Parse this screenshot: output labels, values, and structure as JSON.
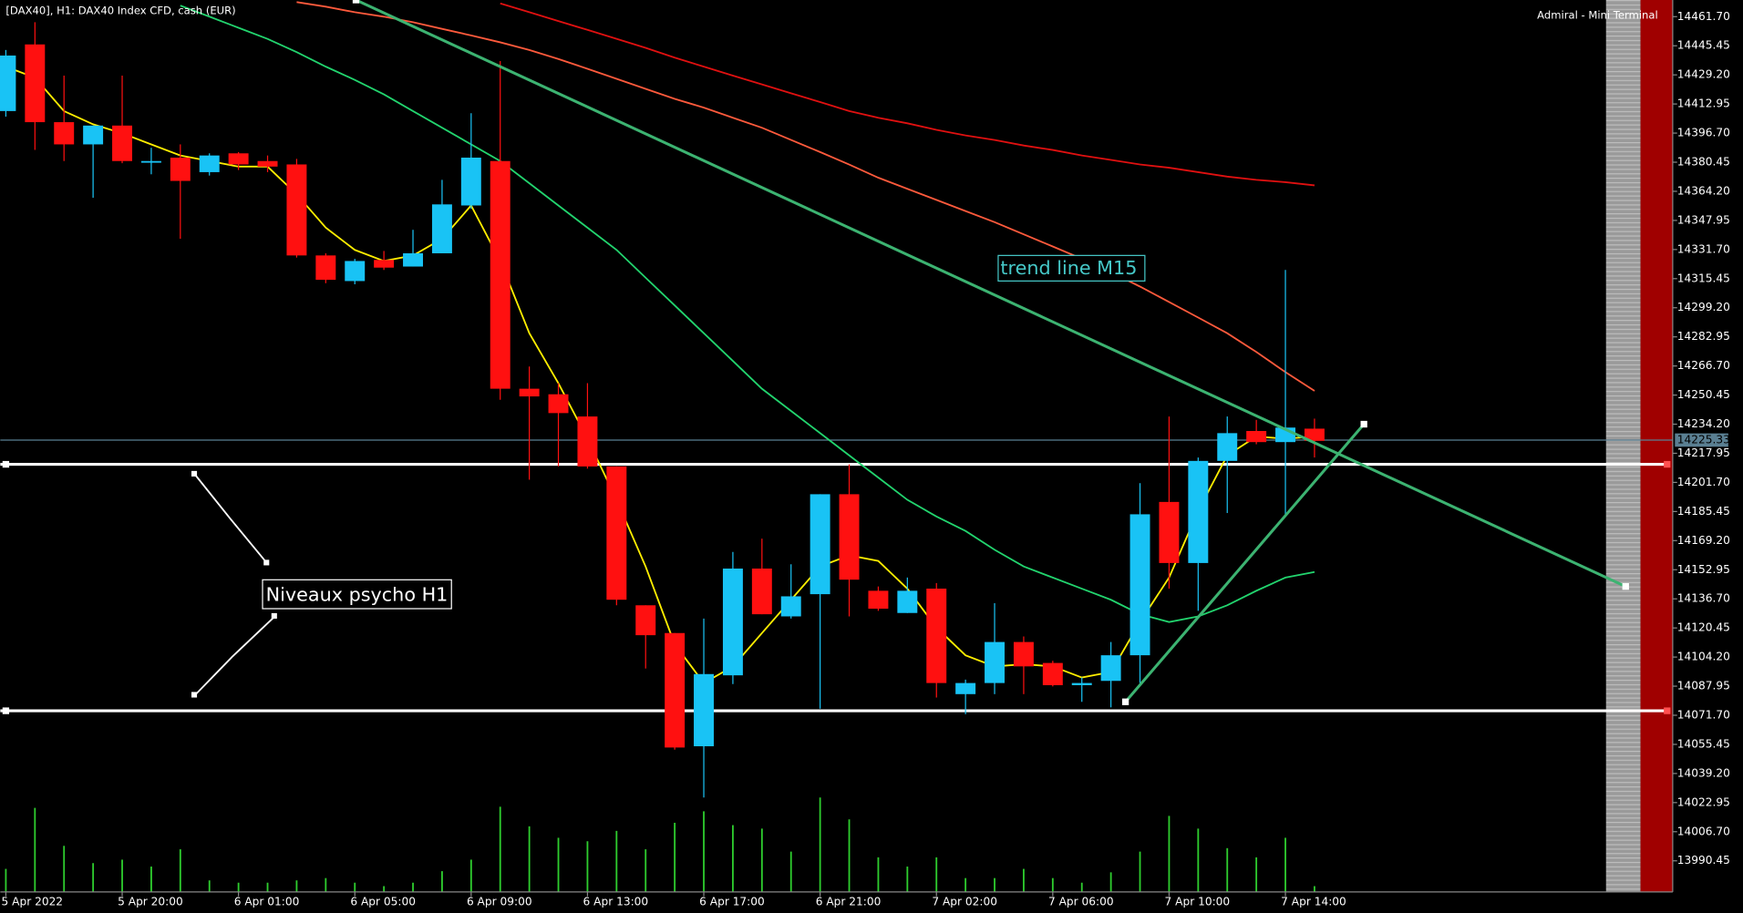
{
  "chart_data": {
    "type": "candlestick",
    "title": "[DAX40], H1:  DAX40 Index CFD, cash (EUR)",
    "terminal_label": "Admiral - Mini Terminal",
    "annotations": [
      "trend line M15",
      "Niveaux psycho H1"
    ],
    "categories": [
      "5 Apr 2022",
      null,
      null,
      null,
      "5 Apr 20:00",
      null,
      null,
      null,
      "6 Apr 01:00",
      null,
      null,
      null,
      "6 Apr 05:00",
      null,
      null,
      null,
      "6 Apr 09:00",
      null,
      null,
      null,
      "6 Apr 13:00",
      null,
      null,
      null,
      "6 Apr 17:00",
      null,
      null,
      null,
      "6 Apr 21:00",
      null,
      null,
      null,
      "7 Apr 02:00",
      null,
      null,
      null,
      "7 Apr 06:00",
      null,
      null,
      null,
      "7 Apr 10:00",
      null,
      null,
      null,
      "7 Apr 14:00",
      null
    ],
    "open": [
      14409.0,
      14446.2,
      14402.8,
      14390.4,
      14400.9,
      14380.5,
      14383.0,
      14374.9,
      14385.4,
      14381.1,
      14379.2,
      14328.4,
      14314.1,
      14325.9,
      14322.2,
      14329.6,
      14356.3,
      14381.1,
      14254.0,
      14250.9,
      14238.5,
      14210.6,
      14133.1,
      14117.6,
      14054.4,
      14094.0,
      14153.6,
      14126.9,
      14139.3,
      14195.1,
      14141.2,
      14128.8,
      14142.4,
      14083.5,
      14089.7,
      14112.6,
      14100.9,
      14088.5,
      14090.9,
      14105.2,
      14190.8,
      14156.7,
      14213.7,
      14230.4,
      14224.2,
      14231.7
    ],
    "high": [
      14443.1,
      14458.6,
      14428.8,
      14400.9,
      14428.8,
      14388.5,
      14390.4,
      14385.4,
      14386.1,
      14384.2,
      14382.3,
      14329.6,
      14326.5,
      14330.9,
      14342.7,
      14370.6,
      14407.8,
      14436.9,
      14266.4,
      14257.1,
      14257.1,
      14210.6,
      14133.1,
      14117.6,
      14125.7,
      14162.9,
      14170.3,
      14156.0,
      14195.1,
      14211.8,
      14143.6,
      14148.6,
      14145.5,
      14091.6,
      14134.3,
      14115.7,
      14102.1,
      14092.8,
      14112.6,
      14201.3,
      14238.5,
      14215.6,
      14238.5,
      14236.6,
      14320.3,
      14237.3
    ],
    "low": [
      14405.9,
      14387.3,
      14381.1,
      14360.6,
      14379.9,
      14373.7,
      14337.7,
      14373.0,
      14376.1,
      14374.9,
      14327.2,
      14312.9,
      14312.3,
      14320.3,
      14322.2,
      14329.6,
      14354.4,
      14247.8,
      14203.2,
      14210.6,
      14209.4,
      14133.1,
      14097.8,
      14052.5,
      14025.8,
      14089.1,
      14128.1,
      14125.7,
      14075.4,
      14126.9,
      14130.0,
      14128.8,
      14081.6,
      14072.3,
      14083.5,
      14083.5,
      14087.8,
      14079.2,
      14076.1,
      14089.7,
      14142.4,
      14130.0,
      14184.6,
      14223.0,
      14182.7,
      14215.6
    ],
    "close": [
      14440.0,
      14402.8,
      14390.4,
      14400.9,
      14381.1,
      14381.1,
      14370.0,
      14384.2,
      14379.2,
      14378.0,
      14328.4,
      14314.8,
      14325.3,
      14321.6,
      14329.6,
      14356.9,
      14383.0,
      14254.0,
      14249.7,
      14240.4,
      14210.6,
      14136.2,
      14116.4,
      14053.7,
      14094.7,
      14153.6,
      14128.1,
      14138.1,
      14195.1,
      14147.4,
      14131.2,
      14141.2,
      14089.7,
      14089.7,
      14112.6,
      14099.0,
      14088.5,
      14089.7,
      14105.2,
      14183.9,
      14156.7,
      14213.7,
      14229.2,
      14224.2,
      14232.3,
      14224.9
    ],
    "up_color": "#19c3f5",
    "down_color": "#ff1010",
    "volume": [
      20,
      73,
      40,
      25,
      28,
      22,
      37,
      10,
      8,
      8,
      10,
      12,
      8,
      5,
      8,
      18,
      28,
      74,
      57,
      47,
      44,
      53,
      37,
      60,
      70,
      58,
      55,
      35,
      82,
      63,
      30,
      22,
      30,
      12,
      12,
      20,
      12,
      8,
      17,
      35,
      66,
      55,
      38,
      30,
      47,
      5
    ],
    "volume_color": "#2ecc2e",
    "lines": [
      {
        "color": "#ffee00",
        "values": [
          14433.8,
          14427.6,
          14409.0,
          14401.6,
          14396.6,
          14390.4,
          14384.2,
          14381.1,
          14378.0,
          14378.0,
          14362.5,
          14343.9,
          14331.5,
          14325.3,
          14328.4,
          14337.7,
          14356.3,
          14325.3,
          14285.0,
          14257.1,
          14226.1,
          14192.0,
          14154.8,
          14111.4,
          14089.7,
          14099.0,
          14117.6,
          14136.2,
          14154.8,
          14161.0,
          14157.9,
          14142.4,
          14120.7,
          14105.2,
          14099.0,
          14100.2,
          14099.0,
          14092.8,
          14095.9,
          14123.8,
          14148.6,
          14185.8,
          14216.8,
          14227.3,
          14226.1,
          14227.3
        ]
      },
      {
        "color": "#22d46e",
        "values": [
          null,
          null,
          null,
          null,
          null,
          null,
          14467.9,
          14461.7,
          14455.5,
          14449.3,
          14441.9,
          14433.8,
          14426.4,
          14418.3,
          14409.0,
          14399.7,
          14390.4,
          14381.1,
          14368.7,
          14356.3,
          14343.9,
          14331.5,
          14316.0,
          14300.5,
          14285.0,
          14269.5,
          14254.0,
          14241.6,
          14229.2,
          14216.8,
          14204.4,
          14192.0,
          14182.7,
          14174.6,
          14164.1,
          14154.8,
          14148.6,
          14142.4,
          14136.2,
          14128.1,
          14123.8,
          14126.9,
          14133.1,
          14141.2,
          14148.6,
          14151.7
        ]
      },
      {
        "color": "#ff5a3c",
        "values": [
          null,
          null,
          null,
          null,
          null,
          null,
          null,
          null,
          null,
          null,
          14469.8,
          14467.3,
          14464.2,
          14461.7,
          14458.6,
          14454.9,
          14451.2,
          14447.4,
          14443.1,
          14438.1,
          14432.6,
          14427.0,
          14421.4,
          14415.8,
          14410.9,
          14405.3,
          14399.7,
          14392.9,
          14386.1,
          14379.2,
          14371.8,
          14365.6,
          14359.4,
          14353.2,
          14347.0,
          14340.2,
          14333.4,
          14326.5,
          14319.1,
          14311.0,
          14302.4,
          14293.7,
          14285.0,
          14274.5,
          14263.3,
          14252.8
        ]
      },
      {
        "color": "#e01010",
        "values": [
          null,
          null,
          null,
          null,
          null,
          null,
          null,
          null,
          null,
          null,
          null,
          null,
          null,
          null,
          null,
          null,
          null,
          14469.1,
          14464.2,
          14459.2,
          14454.3,
          14449.3,
          14444.3,
          14438.8,
          14433.8,
          14428.8,
          14423.9,
          14418.9,
          14414.0,
          14409.0,
          14405.3,
          14402.2,
          14398.5,
          14395.4,
          14392.9,
          14389.8,
          14387.3,
          14384.2,
          14381.7,
          14379.2,
          14377.4,
          14374.9,
          14372.4,
          14370.6,
          14369.3,
          14367.5
        ]
      }
    ],
    "trendlines": [
      {
        "color": "#3cb371",
        "x": [
          12.04,
          55.7
        ],
        "values": [
          14471.0,
          14143.6
        ]
      },
      {
        "color": "#3cb371",
        "x": [
          38.5,
          46.7
        ],
        "values": [
          14079.2,
          14234.2
        ]
      }
    ],
    "levels": [
      {
        "color": "#ffffff",
        "value": 14211.8
      },
      {
        "color": "#ffffff",
        "value": 14074.2
      }
    ],
    "last_price": {
      "value": 14225.33,
      "label": "14225.33"
    },
    "ylim": [
      13973.1,
      14471.0
    ],
    "yticks": [
      {
        "value": 14461.7,
        "label": "14461.70"
      },
      {
        "value": 14445.45,
        "label": "14445.45"
      },
      {
        "value": 14429.2,
        "label": "14429.20"
      },
      {
        "value": 14412.95,
        "label": "14412.95"
      },
      {
        "value": 14396.7,
        "label": "14396.70"
      },
      {
        "value": 14380.45,
        "label": "14380.45"
      },
      {
        "value": 14364.2,
        "label": "14364.20"
      },
      {
        "value": 14347.95,
        "label": "14347.95"
      },
      {
        "value": 14331.7,
        "label": "14331.70"
      },
      {
        "value": 14315.45,
        "label": "14315.45"
      },
      {
        "value": 14299.2,
        "label": "14299.20"
      },
      {
        "value": 14282.95,
        "label": "14282.95"
      },
      {
        "value": 14266.7,
        "label": "14266.70"
      },
      {
        "value": 14250.45,
        "label": "14250.45"
      },
      {
        "value": 14234.2,
        "label": "14234.20"
      },
      {
        "value": 14217.95,
        "label": "14217.95"
      },
      {
        "value": 14201.7,
        "label": "14201.70"
      },
      {
        "value": 14185.45,
        "label": "14185.45"
      },
      {
        "value": 14169.2,
        "label": "14169.20"
      },
      {
        "value": 14152.95,
        "label": "14152.95"
      },
      {
        "value": 14136.7,
        "label": "14136.70"
      },
      {
        "value": 14120.45,
        "label": "14120.45"
      },
      {
        "value": 14104.2,
        "label": "14104.20"
      },
      {
        "value": 14087.95,
        "label": "14087.95"
      },
      {
        "value": 14071.7,
        "label": "14071.70"
      },
      {
        "value": 14055.45,
        "label": "14055.45"
      },
      {
        "value": 14039.2,
        "label": "14039.20"
      },
      {
        "value": 14022.95,
        "label": "14022.95"
      },
      {
        "value": 14006.7,
        "label": "14006.70"
      },
      {
        "value": 13990.45,
        "label": "13990.45"
      }
    ],
    "grid": false
  }
}
